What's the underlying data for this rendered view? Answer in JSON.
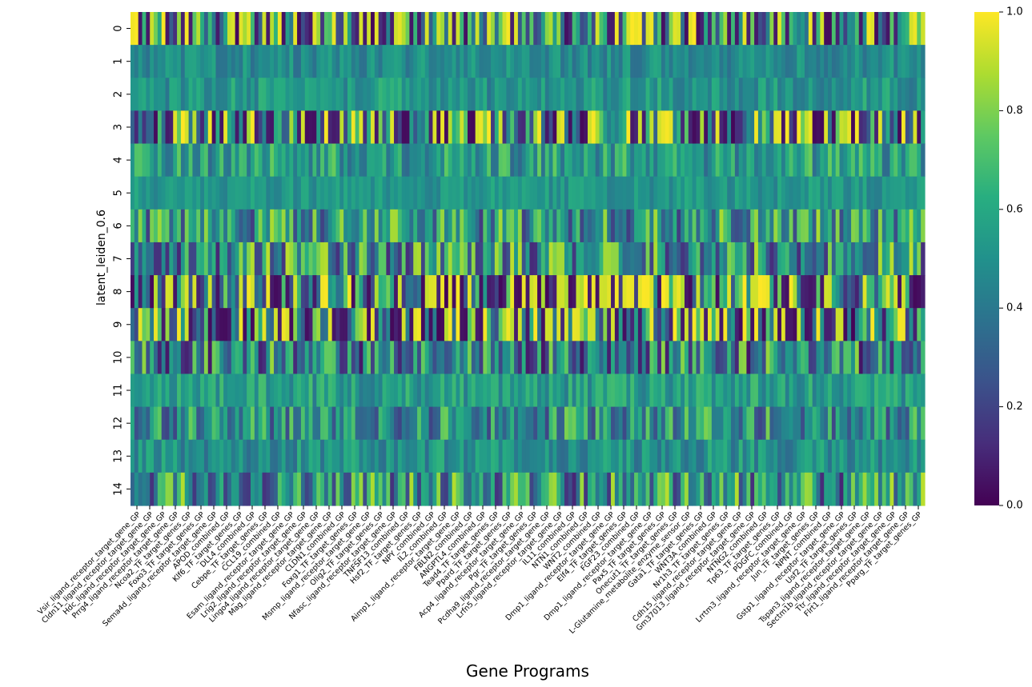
{
  "chart_data": {
    "type": "heatmap",
    "title": "",
    "xlabel": "Gene Programs",
    "ylabel": "latent_leiden_0.6",
    "row_labels": [
      "0",
      "1",
      "2",
      "3",
      "4",
      "5",
      "6",
      "7",
      "8",
      "9",
      "10",
      "11",
      "12",
      "13",
      "14"
    ],
    "x_tick_labels": [
      "Vsir_ligand_receptor_target_gene_GP",
      "Cldn11_ligand_receptor_target_gene_GP",
      "Hdc_ligand_receptor_target_gene_GP",
      "Prrg4_ligand_receptor_target_gene_GP",
      "Ncoa2_TF_target_genes_GP",
      "Foxo3_TF_target_genes_GP",
      "Sema4d_ligand_receptor_target_gene_GP",
      "APOD_combined_GP",
      "Klf6_TF_target_genes_GP",
      "DLL4_combined_GP",
      "Cebpe_TF_target_genes_GP",
      "CCL19_combined_GP",
      "Esam_ligand_receptor_target_gene_GP",
      "Lrig2_ligand_receptor_target_gene_GP",
      "Lingo4_ligand_receptor_target_gene_GP",
      "Mag_ligand_receptor_target_gene_GP",
      "CLDN1_combined_GP",
      "Foxg1_TF_target_genes_GP",
      "Msmp_ligand_receptor_target_gene_GP",
      "Olig2_TF_target_genes_GP",
      "Nfasc_ligand_receptor_target_gene_GP",
      "TNFSF13_combined_GP",
      "Hsf2_TF_target_genes_GP",
      "NPY_combined_GP",
      "IL2_combined_GP",
      "Aimp1_ligand_receptor_target_gene_GP",
      "FBLN2_combined_GP",
      "ANGPTL4_combined_GP",
      "Tead4_TF_target_genes_GP",
      "Ppard_TF_target_genes_GP",
      "Acp4_ligand_receptor_target_gene_GP",
      "Pgr_TF_target_genes_GP",
      "Pcdha9_ligand_receptor_target_gene_GP",
      "Lrfn5_ligand_receptor_target_gene_GP",
      "IL11_combined_GP",
      "NTN1_combined_GP",
      "WNT2_combined_GP",
      "Dmp1_ligand_receptor_target_gene_GP",
      "Elf4_TF_target_genes_GP",
      "FGF23_combined_GP",
      "Dmp1_ligand_receptor_target_gene_GP",
      "Pax5_TF_target_genes_GP",
      "Onecut1_TF_target_genes_GP",
      "L-Glutamine_metabolite_enzyme_sensor_GP",
      "Gata1_TF_target_genes_GP",
      "WNT3A_combined_GP",
      "Nr1h3_TF_target_genes_GP",
      "Cdh15_ligand_receptor_target_gene_GP",
      "Gm37013_ligand_receptor_target_gene_GP",
      "NTNG2_combined_GP",
      "Tp63_TF_target_genes_GP",
      "PDGFC_combined_GP",
      "Lrrtm3_ligand_receptor_target_gene_GP",
      "Jun_TF_target_genes_GP",
      "NPNT_combined_GP",
      "Gstp1_ligand_receptor_target_gene_GP",
      "Usf2_TF_target_genes_GP",
      "Tspan3_ligand_receptor_target_gene_GP",
      "Sectm1b_ligand_receptor_target_gene_GP",
      "Ttr_ligand_receptor_target_gene_GP",
      "Flrt1_ligand_receptor_target_gene_GP",
      "Pparg_TF_target_genes_GP"
    ],
    "n_columns": 205,
    "vmin": 0.0,
    "vmax": 1.0,
    "colormap": "viridis",
    "colorbar_ticks": [
      "0.0",
      "0.2",
      "0.4",
      "0.6",
      "0.8",
      "1.0"
    ],
    "row_profiles": [
      {
        "row": "0",
        "mean": 0.55,
        "spread": 0.45
      },
      {
        "row": "1",
        "mean": 0.48,
        "spread": 0.12
      },
      {
        "row": "2",
        "mean": 0.52,
        "spread": 0.14
      },
      {
        "row": "3",
        "mean": 0.55,
        "spread": 0.45
      },
      {
        "row": "4",
        "mean": 0.55,
        "spread": 0.22
      },
      {
        "row": "5",
        "mean": 0.52,
        "spread": 0.1
      },
      {
        "row": "6",
        "mean": 0.52,
        "spread": 0.35
      },
      {
        "row": "7",
        "mean": 0.5,
        "spread": 0.4
      },
      {
        "row": "8",
        "mean": 0.5,
        "spread": 0.5
      },
      {
        "row": "9",
        "mean": 0.5,
        "spread": 0.5
      },
      {
        "row": "10",
        "mean": 0.45,
        "spread": 0.4
      },
      {
        "row": "11",
        "mean": 0.55,
        "spread": 0.15
      },
      {
        "row": "12",
        "mean": 0.5,
        "spread": 0.3
      },
      {
        "row": "13",
        "mean": 0.5,
        "spread": 0.15
      },
      {
        "row": "14",
        "mean": 0.5,
        "spread": 0.4
      }
    ]
  }
}
